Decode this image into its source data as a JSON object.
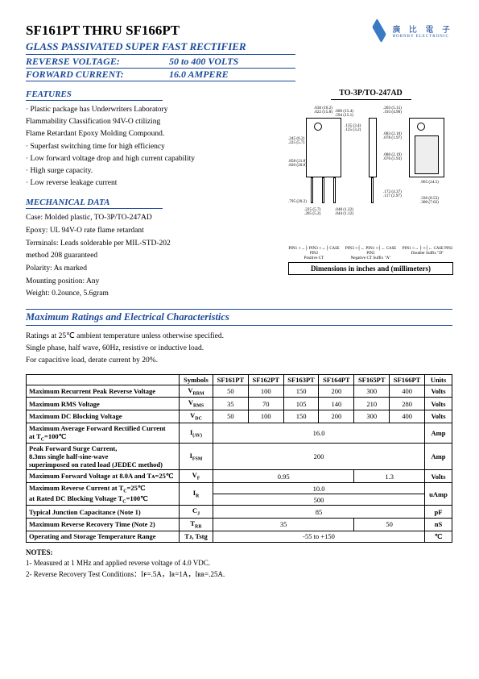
{
  "header": {
    "title": "SF161PT THRU SF166PT",
    "subtitle": "GLASS PASSIVATED SUPER FAST RECTIFIER",
    "spec1_label": "REVERSE VOLTAGE:",
    "spec1_value": "50 to 400 VOLTS",
    "spec2_label": "FORWARD CURRENT:",
    "spec2_value": "16.0 AMPERE"
  },
  "branding": {
    "chinese": "廣 比 電 子",
    "english": "HORNBY ELECTRONIC"
  },
  "features": {
    "head": "FEATURES",
    "items": [
      "· Plastic package has Underwriters Laboratory",
      "  Flammability Classification 94V-O ctilizing",
      "  Flame Retardant Epoxy Molding Compound.",
      "· Superfast switching time for high efficiency",
      "· Low forward voltage drop and high current capability",
      "· High surge capacity.",
      "· Low reverse leakage current"
    ]
  },
  "mechanical": {
    "head": "MECHANICAL DATA",
    "items": [
      "Case: Molded plastic, TO-3P/TO-247AD",
      "Epoxy: UL 94V-O rate flame retardant",
      "Terminals: Leads solderable per MIL-STD-202",
      "method 208 guaranteed",
      "Polarity: As marked",
      "Mounting position: Any",
      "Weight: 0.2ounce, 5.6gram"
    ]
  },
  "package": {
    "title": "TO-3P/TO-247AD",
    "caption": "Dimensions in inches and (millimeters)",
    "pin_labels": [
      "PIN 1",
      "PIN 2",
      "PIN 3"
    ],
    "config_labels": [
      "Positive CT",
      "Negative CT Suffix \"A\"",
      "Doubler Suffix \"D\""
    ],
    "case_pin": "CASE PIN 2"
  },
  "maxratings": {
    "head": "Maximum Ratings and Electrical Characteristics",
    "desc": [
      "Ratings at 25℃ ambient temperature unless otherwise specified.",
      "Single phase, half wave, 60Hᴢ, resistive or inductive load.",
      "For capacitive load, derate current by 20%."
    ]
  },
  "table": {
    "headers": [
      "",
      "Symbols",
      "SF161PT",
      "SF162PT",
      "SF163PT",
      "SF164PT",
      "SF165PT",
      "SF166PT",
      "Units"
    ],
    "rows": [
      {
        "label": "Maximum Recurrent Peak Reverse Voltage",
        "sym": "V",
        "sub": "RRM",
        "vals": [
          "50",
          "100",
          "150",
          "200",
          "300",
          "400"
        ],
        "unit": "Volts"
      },
      {
        "label": "Maximum RMS Voltage",
        "sym": "V",
        "sub": "RMS",
        "vals": [
          "35",
          "70",
          "105",
          "140",
          "210",
          "280"
        ],
        "unit": "Volts"
      },
      {
        "label": "Maximum DC Blocking Voltage",
        "sym": "V",
        "sub": "DC",
        "vals": [
          "50",
          "100",
          "150",
          "200",
          "300",
          "400"
        ],
        "unit": "Volts"
      }
    ],
    "iav": {
      "label1": "Maximum Average Forward Rectified Current",
      "label2": "at T",
      "sub": "C",
      "eq": "=100℃",
      "sym": "I",
      "symsub": "(AV)",
      "val": "16.0",
      "unit": "Amp"
    },
    "ifsm": {
      "label1": "Peak Forward Surge Current,",
      "label2": "8.3ms single half-sine-wave",
      "label3": "superimposed on rated load (JEDEC method)",
      "sym": "I",
      "symsub": "FSM",
      "val": "200",
      "unit": "Amp"
    },
    "vf": {
      "label": "Maximum Forward Voltage at 8.0A and Tᴀ=25℃",
      "sym": "V",
      "symsub": "F",
      "val1": "0.95",
      "val2": "1.3",
      "unit": "Volts"
    },
    "ir": {
      "label1": "Maximum Reverse Current        at T",
      "sub1": "C",
      "eq1": "=25℃",
      "label2": "at Rated DC Blocking Voltage   T",
      "sub2": "C",
      "eq2": "=100℃",
      "sym": "I",
      "symsub": "R",
      "val1": "10.0",
      "val2": "500",
      "unit": "uAmp"
    },
    "cj": {
      "label": "Typical Junction Capacitance (Note 1)",
      "sym": "C",
      "symsub": "J",
      "val": "85",
      "unit": "pF"
    },
    "trr": {
      "label": "Maximum Reverse Recovery Time (Note 2)",
      "sym": "T",
      "symsub": "RR",
      "val1": "35",
      "val2": "50",
      "unit": "nS"
    },
    "temp": {
      "label": "Operating and Storage Temperature Range",
      "sym": "Tᴊ,  Tstg",
      "val": "-55 to +150",
      "unit": "℃"
    }
  },
  "notes": {
    "head": "NOTES:",
    "items": [
      "1- Measured at 1 MHᴢ and applied reverse voltage of 4.0 VDC.",
      "2- Reverse Recovery Test Conditions：Iꜰ=.5A，Iʀ=1A，Iʀʀ=.25A."
    ]
  }
}
